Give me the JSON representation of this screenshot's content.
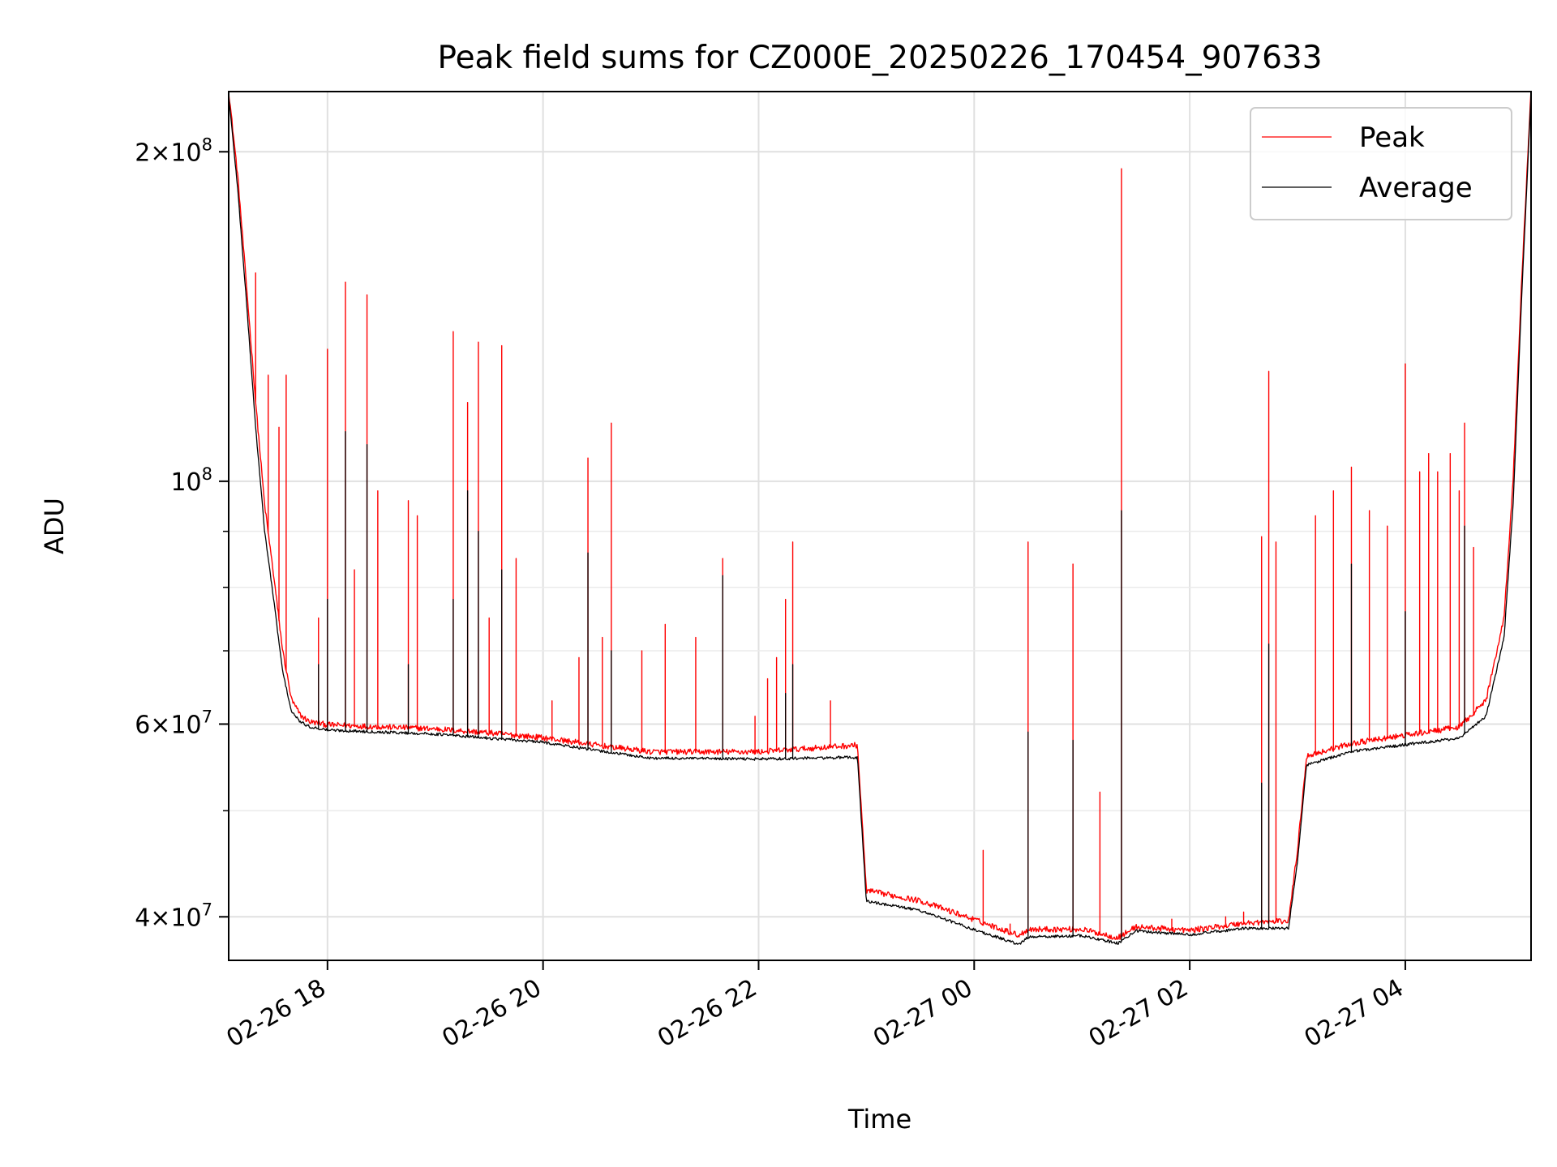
{
  "chart_data": {
    "type": "line",
    "title": "Peak field sums for CZ000E_20250226_170454_907633",
    "xlabel": "Time",
    "ylabel": "ADU",
    "x_axis_type": "time",
    "y_scale": "log",
    "xlim": [
      "2025-02-26 17:05",
      "2025-02-27 05:10"
    ],
    "ylim": [
      36500000,
      227000000
    ],
    "grid": true,
    "legend_position": "upper right",
    "x_ticks": [
      {
        "value": "2025-02-26 18:00",
        "label": "02-26 18"
      },
      {
        "value": "2025-02-26 20:00",
        "label": "02-26 20"
      },
      {
        "value": "2025-02-26 22:00",
        "label": "02-26 22"
      },
      {
        "value": "2025-02-27 00:00",
        "label": "02-27 00"
      },
      {
        "value": "2025-02-27 02:00",
        "label": "02-27 02"
      },
      {
        "value": "2025-02-27 04:00",
        "label": "02-27 04"
      }
    ],
    "y_major_ticks": [
      {
        "value": 40000000,
        "mantissa": "4",
        "exponent": "7"
      },
      {
        "value": 60000000,
        "mantissa": "6",
        "exponent": "7"
      },
      {
        "value": 100000000,
        "mantissa": "",
        "exponent": "8"
      },
      {
        "value": 200000000,
        "mantissa": "2",
        "exponent": "8"
      }
    ],
    "y_minor_ticks": [
      50000000,
      70000000,
      80000000,
      90000000
    ],
    "series": [
      {
        "name": "Peak",
        "color": "#ff0000",
        "baseline": {
          "x": [
            "2025-02-26 17:05",
            "2025-02-26 17:10",
            "2025-02-26 17:15",
            "2025-02-26 17:20",
            "2025-02-26 17:25",
            "2025-02-26 17:30",
            "2025-02-26 17:35",
            "2025-02-26 17:40",
            "2025-02-26 17:45",
            "2025-02-26 17:50",
            "2025-02-26 18:00",
            "2025-02-26 19:00",
            "2025-02-26 19:30",
            "2025-02-26 20:00",
            "2025-02-26 20:30",
            "2025-02-26 21:00",
            "2025-02-26 22:00",
            "2025-02-26 22:55",
            "2025-02-26 23:00",
            "2025-02-26 23:30",
            "2025-02-27 00:00",
            "2025-02-27 00:25",
            "2025-02-27 00:30",
            "2025-02-27 01:00",
            "2025-02-27 01:20",
            "2025-02-27 01:30",
            "2025-02-27 02:00",
            "2025-02-27 02:30",
            "2025-02-27 02:55",
            "2025-02-27 03:00",
            "2025-02-27 03:05",
            "2025-02-27 03:30",
            "2025-02-27 04:00",
            "2025-02-27 04:30",
            "2025-02-27 04:45",
            "2025-02-27 04:55",
            "2025-02-27 05:00",
            "2025-02-27 05:05",
            "2025-02-27 05:10"
          ],
          "y": [
            227000000,
            190000000,
            150000000,
            118000000,
            95000000,
            82000000,
            70000000,
            63000000,
            61000000,
            60200000,
            59800000,
            59300000,
            58800000,
            58200000,
            57300000,
            56500000,
            56500000,
            57300000,
            42200000,
            41300000,
            39700000,
            38400000,
            38900000,
            38900000,
            38200000,
            39100000,
            38800000,
            39400000,
            39600000,
            46000000,
            56000000,
            57500000,
            58500000,
            59500000,
            63000000,
            75000000,
            100000000,
            155000000,
            227000000
          ]
        },
        "spikes": [
          {
            "x": "2025-02-26 17:20",
            "y": 155000000
          },
          {
            "x": "2025-02-26 17:27",
            "y": 125000000
          },
          {
            "x": "2025-02-26 17:33",
            "y": 112000000
          },
          {
            "x": "2025-02-26 17:37",
            "y": 125000000
          },
          {
            "x": "2025-02-26 17:55",
            "y": 75000000
          },
          {
            "x": "2025-02-26 18:00",
            "y": 132000000
          },
          {
            "x": "2025-02-26 18:10",
            "y": 152000000
          },
          {
            "x": "2025-02-26 18:15",
            "y": 83000000
          },
          {
            "x": "2025-02-26 18:22",
            "y": 148000000
          },
          {
            "x": "2025-02-26 18:28",
            "y": 98000000
          },
          {
            "x": "2025-02-26 18:45",
            "y": 96000000
          },
          {
            "x": "2025-02-26 18:50",
            "y": 93000000
          },
          {
            "x": "2025-02-26 19:10",
            "y": 137000000
          },
          {
            "x": "2025-02-26 19:18",
            "y": 118000000
          },
          {
            "x": "2025-02-26 19:24",
            "y": 134000000
          },
          {
            "x": "2025-02-26 19:30",
            "y": 75000000
          },
          {
            "x": "2025-02-26 19:37",
            "y": 133000000
          },
          {
            "x": "2025-02-26 19:45",
            "y": 85000000
          },
          {
            "x": "2025-02-26 20:05",
            "y": 63000000
          },
          {
            "x": "2025-02-26 20:20",
            "y": 69000000
          },
          {
            "x": "2025-02-26 20:25",
            "y": 105000000
          },
          {
            "x": "2025-02-26 20:33",
            "y": 72000000
          },
          {
            "x": "2025-02-26 20:38",
            "y": 113000000
          },
          {
            "x": "2025-02-26 20:55",
            "y": 70000000
          },
          {
            "x": "2025-02-26 21:08",
            "y": 74000000
          },
          {
            "x": "2025-02-26 21:25",
            "y": 72000000
          },
          {
            "x": "2025-02-26 21:40",
            "y": 85000000
          },
          {
            "x": "2025-02-26 22:05",
            "y": 66000000
          },
          {
            "x": "2025-02-26 21:58",
            "y": 61000000
          },
          {
            "x": "2025-02-26 22:10",
            "y": 69000000
          },
          {
            "x": "2025-02-26 22:15",
            "y": 78000000
          },
          {
            "x": "2025-02-26 22:19",
            "y": 88000000
          },
          {
            "x": "2025-02-26 22:40",
            "y": 63000000
          },
          {
            "x": "2025-02-26 23:40",
            "y": 41000000
          },
          {
            "x": "2025-02-27 00:05",
            "y": 46000000
          },
          {
            "x": "2025-02-27 00:20",
            "y": 39400000
          },
          {
            "x": "2025-02-27 00:30",
            "y": 88000000
          },
          {
            "x": "2025-02-27 00:55",
            "y": 84000000
          },
          {
            "x": "2025-02-27 01:10",
            "y": 52000000
          },
          {
            "x": "2025-02-27 01:22",
            "y": 193000000
          },
          {
            "x": "2025-02-27 01:50",
            "y": 39800000
          },
          {
            "x": "2025-02-27 02:20",
            "y": 40000000
          },
          {
            "x": "2025-02-27 02:30",
            "y": 40400000
          },
          {
            "x": "2025-02-27 02:40",
            "y": 89000000
          },
          {
            "x": "2025-02-27 02:44",
            "y": 126000000
          },
          {
            "x": "2025-02-27 02:48",
            "y": 88000000
          },
          {
            "x": "2025-02-27 03:10",
            "y": 93000000
          },
          {
            "x": "2025-02-27 03:20",
            "y": 98000000
          },
          {
            "x": "2025-02-27 03:30",
            "y": 103000000
          },
          {
            "x": "2025-02-27 03:40",
            "y": 94000000
          },
          {
            "x": "2025-02-27 03:50",
            "y": 91000000
          },
          {
            "x": "2025-02-27 04:00",
            "y": 128000000
          },
          {
            "x": "2025-02-27 04:08",
            "y": 102000000
          },
          {
            "x": "2025-02-27 04:13",
            "y": 106000000
          },
          {
            "x": "2025-02-27 04:18",
            "y": 102000000
          },
          {
            "x": "2025-02-27 04:25",
            "y": 106000000
          },
          {
            "x": "2025-02-27 04:30",
            "y": 98000000
          },
          {
            "x": "2025-02-27 04:33",
            "y": 113000000
          },
          {
            "x": "2025-02-27 04:38",
            "y": 87000000
          }
        ]
      },
      {
        "name": "Average",
        "color": "#000000",
        "baseline": {
          "x": [
            "2025-02-26 17:05",
            "2025-02-26 17:10",
            "2025-02-26 17:15",
            "2025-02-26 17:20",
            "2025-02-26 17:25",
            "2025-02-26 17:30",
            "2025-02-26 17:35",
            "2025-02-26 17:40",
            "2025-02-26 17:45",
            "2025-02-26 17:50",
            "2025-02-26 18:00",
            "2025-02-26 19:00",
            "2025-02-26 19:30",
            "2025-02-26 20:00",
            "2025-02-26 20:30",
            "2025-02-26 21:00",
            "2025-02-26 22:00",
            "2025-02-26 22:55",
            "2025-02-26 23:00",
            "2025-02-26 23:30",
            "2025-02-27 00:00",
            "2025-02-27 00:25",
            "2025-02-27 00:30",
            "2025-02-27 01:00",
            "2025-02-27 01:20",
            "2025-02-27 01:30",
            "2025-02-27 02:00",
            "2025-02-27 02:30",
            "2025-02-27 02:55",
            "2025-02-27 03:00",
            "2025-02-27 03:05",
            "2025-02-27 03:30",
            "2025-02-27 04:00",
            "2025-02-27 04:30",
            "2025-02-27 04:45",
            "2025-02-27 04:55",
            "2025-02-27 05:00",
            "2025-02-27 05:05",
            "2025-02-27 05:10"
          ],
          "y": [
            225000000,
            185000000,
            145000000,
            112000000,
            90000000,
            78000000,
            67000000,
            61500000,
            60200000,
            59600000,
            59200000,
            58700000,
            58200000,
            57700000,
            56700000,
            55800000,
            55700000,
            55900000,
            41300000,
            40500000,
            38900000,
            37700000,
            38300000,
            38400000,
            37800000,
            38800000,
            38500000,
            39000000,
            39000000,
            45000000,
            55000000,
            56600000,
            57400000,
            58200000,
            61000000,
            72000000,
            95000000,
            150000000,
            225000000
          ]
        },
        "spikes": [
          {
            "x": "2025-02-26 17:55",
            "y": 68000000
          },
          {
            "x": "2025-02-26 18:00",
            "y": 78000000
          },
          {
            "x": "2025-02-26 18:10",
            "y": 111000000
          },
          {
            "x": "2025-02-26 18:22",
            "y": 108000000
          },
          {
            "x": "2025-02-26 18:45",
            "y": 68000000
          },
          {
            "x": "2025-02-26 19:10",
            "y": 78000000
          },
          {
            "x": "2025-02-26 19:18",
            "y": 98000000
          },
          {
            "x": "2025-02-26 19:24",
            "y": 90000000
          },
          {
            "x": "2025-02-26 19:37",
            "y": 83000000
          },
          {
            "x": "2025-02-26 20:25",
            "y": 86000000
          },
          {
            "x": "2025-02-26 20:38",
            "y": 70000000
          },
          {
            "x": "2025-02-26 21:40",
            "y": 82000000
          },
          {
            "x": "2025-02-26 22:15",
            "y": 64000000
          },
          {
            "x": "2025-02-26 22:19",
            "y": 68000000
          },
          {
            "x": "2025-02-27 00:30",
            "y": 59000000
          },
          {
            "x": "2025-02-27 00:55",
            "y": 58000000
          },
          {
            "x": "2025-02-27 01:22",
            "y": 94000000
          },
          {
            "x": "2025-02-27 02:40",
            "y": 53000000
          },
          {
            "x": "2025-02-27 02:44",
            "y": 71000000
          },
          {
            "x": "2025-02-27 03:30",
            "y": 84000000
          },
          {
            "x": "2025-02-27 04:00",
            "y": 76000000
          },
          {
            "x": "2025-02-27 04:33",
            "y": 91000000
          }
        ]
      }
    ]
  }
}
